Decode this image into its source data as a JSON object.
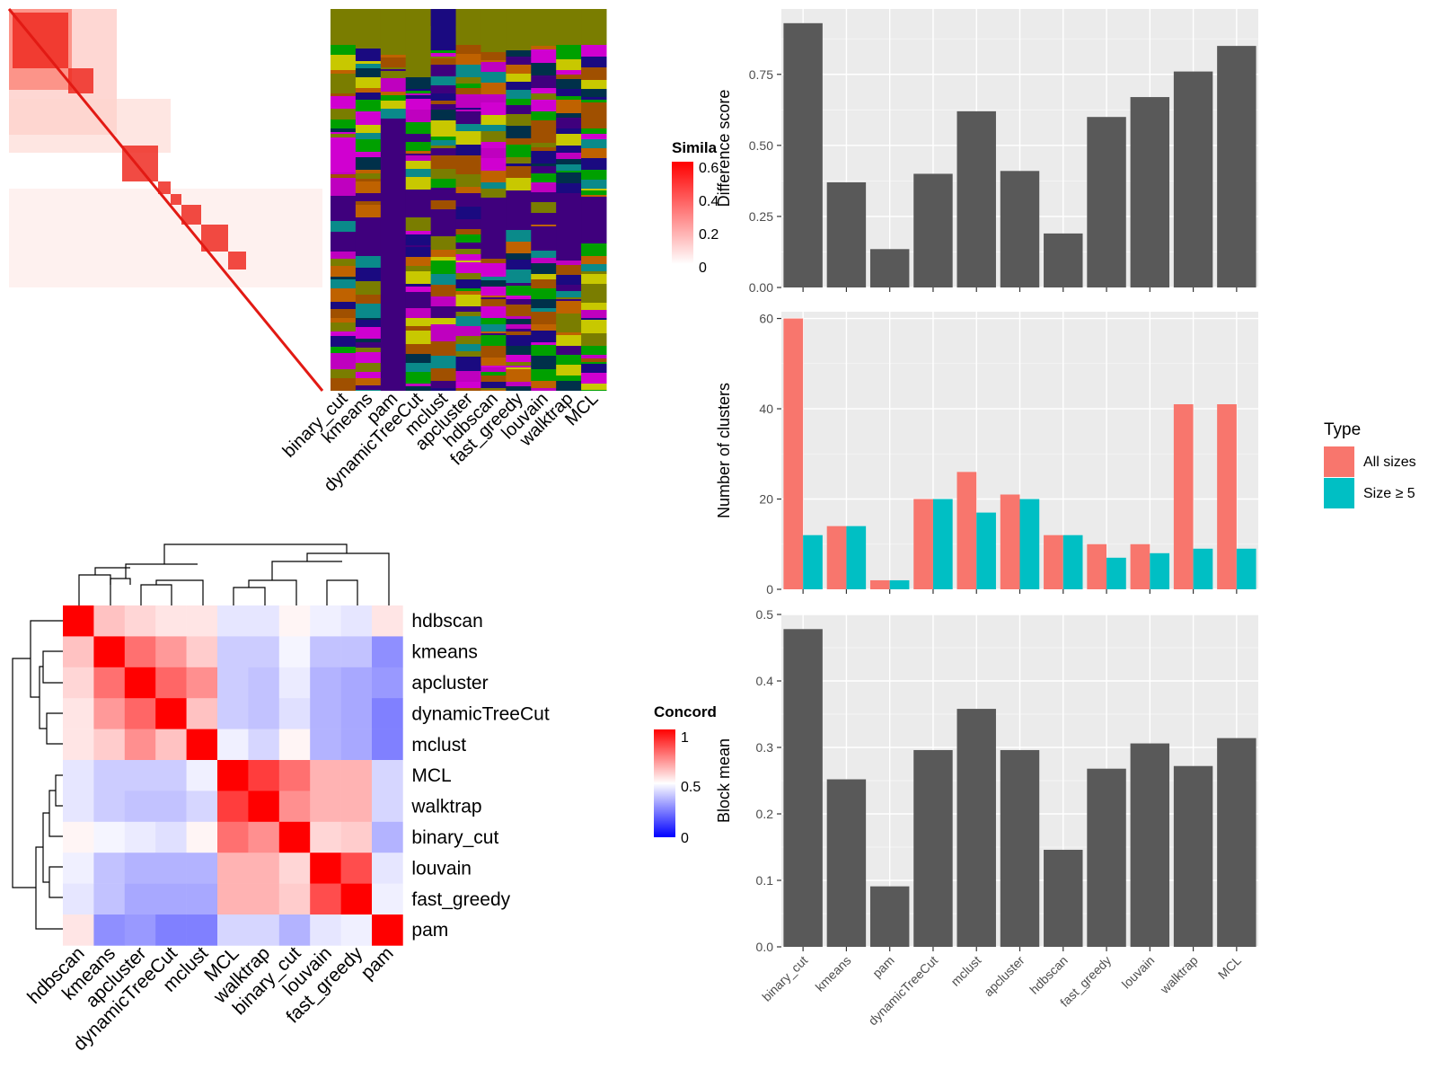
{
  "similarity_panel": {
    "legend_title": "Simila",
    "legend_ticks": [
      "0.6",
      "0.4",
      "0.2",
      "0"
    ],
    "method_labels": [
      "binary_cut",
      "kmeans",
      "pam",
      "dynamicTreeCut",
      "mclust",
      "apcluster",
      "hdbscan",
      "fast_greedy",
      "louvain",
      "walktrap",
      "MCL"
    ]
  },
  "concordance_panel": {
    "legend_title": "Concord",
    "legend_ticks": [
      "1",
      "0.5",
      "0"
    ],
    "row_labels": [
      "hdbscan",
      "kmeans",
      "apcluster",
      "dynamicTreeCut",
      "mclust",
      "MCL",
      "walktrap",
      "binary_cut",
      "louvain",
      "fast_greedy",
      "pam"
    ],
    "col_labels": [
      "hdbscan",
      "kmeans",
      "apcluster",
      "dynamicTreeCut",
      "mclust",
      "MCL",
      "walktrap",
      "binary_cut",
      "louvain",
      "fast_greedy",
      "pam"
    ],
    "matrix": [
      [
        1.0,
        0.62,
        0.58,
        0.55,
        0.55,
        0.45,
        0.45,
        0.52,
        0.47,
        0.45,
        0.55
      ],
      [
        0.62,
        1.0,
        0.78,
        0.7,
        0.6,
        0.4,
        0.4,
        0.48,
        0.38,
        0.38,
        0.28
      ],
      [
        0.58,
        0.78,
        1.0,
        0.8,
        0.72,
        0.4,
        0.38,
        0.46,
        0.35,
        0.33,
        0.3
      ],
      [
        0.55,
        0.7,
        0.8,
        1.0,
        0.62,
        0.4,
        0.38,
        0.44,
        0.35,
        0.33,
        0.25
      ],
      [
        0.55,
        0.6,
        0.72,
        0.62,
        1.0,
        0.47,
        0.42,
        0.52,
        0.35,
        0.33,
        0.25
      ],
      [
        0.45,
        0.4,
        0.4,
        0.4,
        0.47,
        1.0,
        0.88,
        0.78,
        0.65,
        0.65,
        0.42
      ],
      [
        0.45,
        0.4,
        0.38,
        0.38,
        0.42,
        0.88,
        1.0,
        0.72,
        0.65,
        0.65,
        0.42
      ],
      [
        0.52,
        0.48,
        0.46,
        0.44,
        0.52,
        0.78,
        0.72,
        1.0,
        0.58,
        0.6,
        0.35
      ],
      [
        0.47,
        0.38,
        0.35,
        0.35,
        0.35,
        0.65,
        0.65,
        0.58,
        1.0,
        0.85,
        0.45
      ],
      [
        0.45,
        0.38,
        0.33,
        0.33,
        0.33,
        0.65,
        0.65,
        0.6,
        0.85,
        1.0,
        0.47
      ],
      [
        0.55,
        0.28,
        0.3,
        0.25,
        0.25,
        0.42,
        0.42,
        0.35,
        0.45,
        0.47,
        1.0
      ]
    ]
  },
  "chart_data": [
    {
      "type": "bar",
      "ylabel": "Difference score",
      "categories": [
        "binary_cut",
        "kmeans",
        "pam",
        "dynamicTreeCut",
        "mclust",
        "apcluster",
        "hdbscan",
        "fast_greedy",
        "louvain",
        "walktrap",
        "MCL"
      ],
      "values": [
        0.93,
        0.37,
        0.135,
        0.4,
        0.62,
        0.41,
        0.19,
        0.6,
        0.67,
        0.76,
        0.85
      ],
      "yticks": [
        "0.00",
        "0.25",
        "0.50",
        "0.75"
      ],
      "ylim": [
        0,
        0.98
      ],
      "colors": [
        "#595959"
      ]
    },
    {
      "type": "bar",
      "ylabel": "Number of clusters",
      "categories": [
        "binary_cut",
        "kmeans",
        "pam",
        "dynamicTreeCut",
        "mclust",
        "apcluster",
        "hdbscan",
        "fast_greedy",
        "louvain",
        "walktrap",
        "MCL"
      ],
      "series": [
        {
          "name": "All sizes",
          "values": [
            60,
            14,
            2,
            20,
            26,
            21,
            12,
            10,
            10,
            41,
            41
          ]
        },
        {
          "name": "Size ≥ 5",
          "values": [
            12,
            14,
            2,
            20,
            17,
            20,
            12,
            7,
            8,
            9,
            9
          ]
        }
      ],
      "yticks": [
        "0",
        "20",
        "40",
        "60"
      ],
      "ylim": [
        0,
        61.5
      ],
      "legend_title": "Type",
      "legend_position": "right",
      "colors": [
        "#f8766d",
        "#00bfc4"
      ]
    },
    {
      "type": "bar",
      "ylabel": "Block mean",
      "categories": [
        "binary_cut",
        "kmeans",
        "pam",
        "dynamicTreeCut",
        "mclust",
        "apcluster",
        "hdbscan",
        "fast_greedy",
        "louvain",
        "walktrap",
        "MCL"
      ],
      "values": [
        0.478,
        0.252,
        0.091,
        0.296,
        0.358,
        0.296,
        0.146,
        0.268,
        0.306,
        0.272,
        0.314
      ],
      "yticks": [
        "0.0",
        "0.1",
        "0.2",
        "0.3",
        "0.4",
        "0.5"
      ],
      "ylim": [
        0,
        0.5
      ],
      "colors": [
        "#595959"
      ]
    }
  ]
}
